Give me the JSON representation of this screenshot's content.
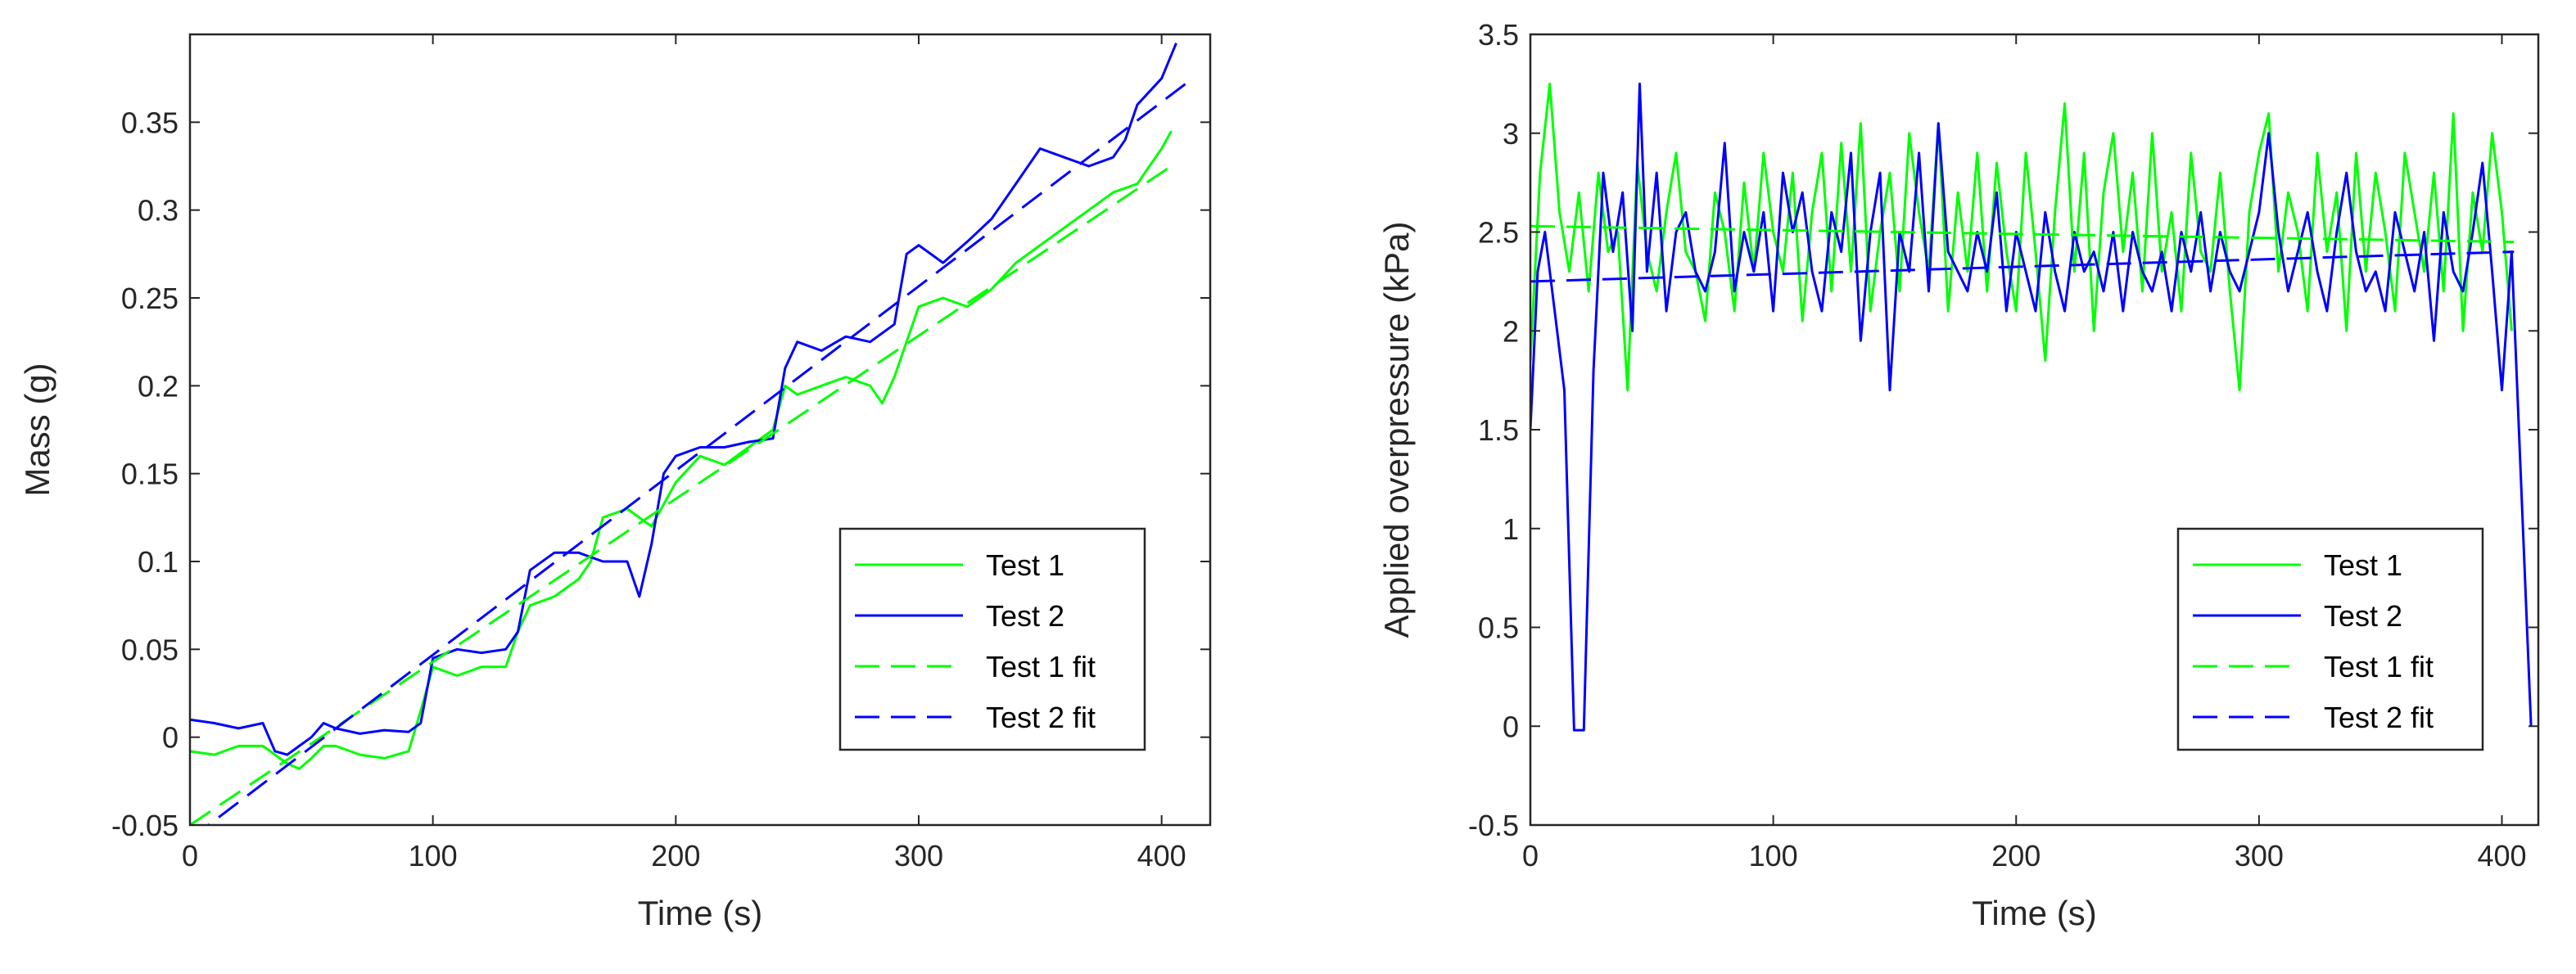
{
  "chart_data": [
    {
      "type": "line",
      "title": "",
      "xlabel": "Time (s)",
      "ylabel": "Mass (g)",
      "xlim": [
        0,
        420
      ],
      "ylim": [
        -0.05,
        0.4
      ],
      "xticks": [
        0,
        100,
        200,
        300,
        400
      ],
      "yticks": [
        -0.05,
        0,
        0.05,
        0.1,
        0.15,
        0.2,
        0.25,
        0.3,
        0.35
      ],
      "ytick_labels": [
        "-0.05",
        "0",
        "0.05",
        "0.1",
        "0.15",
        "0.2",
        "0.25",
        "0.3",
        "0.35"
      ],
      "legend_position": "bottom-right",
      "series": [
        {
          "name": "Test 1",
          "style": "solid",
          "color": "#00ff00",
          "x": [
            0,
            10,
            20,
            30,
            40,
            45,
            50,
            55,
            60,
            70,
            80,
            90,
            95,
            100,
            110,
            120,
            130,
            135,
            140,
            150,
            160,
            165,
            170,
            180,
            190,
            200,
            210,
            220,
            230,
            240,
            245,
            250,
            260,
            270,
            280,
            285,
            290,
            300,
            310,
            320,
            330,
            340,
            350,
            360,
            370,
            380,
            390,
            400,
            404
          ],
          "y": [
            -0.008,
            -0.01,
            -0.005,
            -0.005,
            -0.015,
            -0.018,
            -0.012,
            -0.005,
            -0.005,
            -0.01,
            -0.012,
            -0.008,
            0.015,
            0.04,
            0.035,
            0.04,
            0.04,
            0.06,
            0.075,
            0.08,
            0.09,
            0.1,
            0.125,
            0.13,
            0.12,
            0.145,
            0.16,
            0.155,
            0.165,
            0.175,
            0.2,
            0.195,
            0.2,
            0.205,
            0.2,
            0.19,
            0.205,
            0.245,
            0.25,
            0.245,
            0.255,
            0.27,
            0.28,
            0.29,
            0.3,
            0.31,
            0.315,
            0.335,
            0.345
          ]
        },
        {
          "name": "Test 2",
          "style": "solid",
          "color": "#0000ff",
          "x": [
            0,
            10,
            20,
            30,
            35,
            40,
            45,
            50,
            55,
            60,
            70,
            80,
            90,
            95,
            100,
            110,
            120,
            130,
            135,
            140,
            150,
            160,
            170,
            180,
            185,
            190,
            195,
            200,
            210,
            220,
            230,
            240,
            245,
            250,
            260,
            270,
            280,
            290,
            295,
            300,
            310,
            320,
            330,
            340,
            350,
            360,
            370,
            380,
            385,
            390,
            400,
            406
          ],
          "y": [
            0.01,
            0.008,
            0.005,
            0.008,
            -0.008,
            -0.01,
            -0.005,
            0,
            0.008,
            0.005,
            0.002,
            0.004,
            0.003,
            0.008,
            0.045,
            0.05,
            0.048,
            0.05,
            0.06,
            0.095,
            0.105,
            0.105,
            0.1,
            0.1,
            0.08,
            0.11,
            0.15,
            0.16,
            0.165,
            0.165,
            0.168,
            0.17,
            0.21,
            0.225,
            0.22,
            0.228,
            0.225,
            0.235,
            0.275,
            0.28,
            0.27,
            0.282,
            0.295,
            0.315,
            0.335,
            0.33,
            0.325,
            0.33,
            0.34,
            0.36,
            0.375,
            0.395
          ]
        },
        {
          "name": "Test 1 fit",
          "style": "dashed",
          "color": "#00ff00",
          "x": [
            0,
            405
          ],
          "y": [
            -0.05,
            0.326
          ]
        },
        {
          "name": "Test 2 fit",
          "style": "dashed",
          "color": "#0000ff",
          "x": [
            0,
            410
          ],
          "y": [
            -0.058,
            0.372
          ]
        }
      ]
    },
    {
      "type": "line",
      "title": "",
      "xlabel": "Time (s)",
      "ylabel": "Applied overpressure (kPa)",
      "xlim": [
        0,
        415
      ],
      "ylim": [
        -0.5,
        3.5
      ],
      "xticks": [
        0,
        100,
        200,
        300,
        400
      ],
      "yticks": [
        -0.5,
        0,
        0.5,
        1,
        1.5,
        2,
        2.5,
        3,
        3.5
      ],
      "ytick_labels": [
        "-0.5",
        "0",
        "0.5",
        "1",
        "1.5",
        "2",
        "2.5",
        "3",
        "3.5"
      ],
      "legend_position": "bottom-right",
      "series": [
        {
          "name": "Test 1",
          "style": "solid",
          "color": "#00ff00",
          "x": [
            0,
            4,
            8,
            12,
            16,
            20,
            24,
            28,
            32,
            36,
            40,
            44,
            48,
            52,
            56,
            60,
            64,
            68,
            72,
            76,
            80,
            84,
            88,
            92,
            96,
            100,
            104,
            108,
            112,
            116,
            120,
            124,
            128,
            132,
            136,
            140,
            144,
            148,
            152,
            156,
            160,
            164,
            168,
            172,
            176,
            180,
            184,
            188,
            192,
            196,
            200,
            204,
            208,
            212,
            216,
            220,
            224,
            228,
            232,
            236,
            240,
            244,
            248,
            252,
            256,
            260,
            264,
            268,
            272,
            276,
            280,
            284,
            288,
            292,
            296,
            300,
            304,
            308,
            312,
            316,
            320,
            324,
            328,
            332,
            336,
            340,
            344,
            348,
            352,
            356,
            360,
            364,
            368,
            372,
            376,
            380,
            384,
            388,
            392,
            396,
            400,
            404
          ],
          "y": [
            1.85,
            2.8,
            3.25,
            2.6,
            2.3,
            2.7,
            2.2,
            2.8,
            2.4,
            2.5,
            1.7,
            2.85,
            2.4,
            2.2,
            2.6,
            2.9,
            2.4,
            2.3,
            2.05,
            2.7,
            2.5,
            2.1,
            2.75,
            2.3,
            2.9,
            2.5,
            2.3,
            2.8,
            2.05,
            2.6,
            2.9,
            2.2,
            2.95,
            2.3,
            3.05,
            2.1,
            2.5,
            2.8,
            2.2,
            3.0,
            2.6,
            2.3,
            3.05,
            2.1,
            2.7,
            2.3,
            2.9,
            2.2,
            2.85,
            2.4,
            2.1,
            2.9,
            2.4,
            1.85,
            2.6,
            3.15,
            2.3,
            2.9,
            2.0,
            2.7,
            3.0,
            2.4,
            2.8,
            2.2,
            3.0,
            2.3,
            2.6,
            2.1,
            2.9,
            2.4,
            2.3,
            2.8,
            2.2,
            1.7,
            2.6,
            2.9,
            3.1,
            2.3,
            2.7,
            2.5,
            2.1,
            2.9,
            2.4,
            2.7,
            2.0,
            2.9,
            2.3,
            2.8,
            2.5,
            2.1,
            2.9,
            2.6,
            2.3,
            2.8,
            2.2,
            3.1,
            2.0,
            2.7,
            2.4,
            3.0,
            2.6,
            2.0
          ],
          "fit_x": [
            0,
            405
          ],
          "fit_y": [
            2.53,
            2.45
          ]
        },
        {
          "name": "Test 2",
          "style": "solid",
          "color": "#0000ff",
          "x": [
            0,
            3,
            6,
            10,
            14,
            18,
            22,
            26,
            30,
            34,
            38,
            42,
            45,
            48,
            52,
            56,
            60,
            64,
            68,
            72,
            76,
            80,
            84,
            88,
            92,
            96,
            100,
            104,
            108,
            112,
            116,
            120,
            124,
            128,
            132,
            136,
            140,
            144,
            148,
            152,
            156,
            160,
            164,
            168,
            172,
            176,
            180,
            184,
            188,
            192,
            196,
            200,
            204,
            208,
            212,
            216,
            220,
            224,
            228,
            232,
            236,
            240,
            244,
            248,
            252,
            256,
            260,
            264,
            268,
            272,
            276,
            280,
            284,
            288,
            292,
            296,
            300,
            304,
            308,
            312,
            316,
            320,
            324,
            328,
            332,
            336,
            340,
            344,
            348,
            352,
            356,
            360,
            364,
            368,
            372,
            376,
            380,
            384,
            388,
            392,
            396,
            400,
            404,
            412
          ],
          "y": [
            1.5,
            2.3,
            2.5,
            2.1,
            1.7,
            -0.02,
            -0.02,
            1.8,
            2.8,
            2.4,
            2.7,
            2.0,
            3.25,
            2.3,
            2.8,
            2.1,
            2.5,
            2.6,
            2.3,
            2.2,
            2.4,
            2.95,
            2.2,
            2.5,
            2.3,
            2.6,
            2.1,
            2.8,
            2.5,
            2.7,
            2.3,
            2.1,
            2.6,
            2.4,
            2.9,
            1.95,
            2.5,
            2.8,
            1.7,
            2.5,
            2.3,
            2.9,
            2.2,
            3.05,
            2.4,
            2.3,
            2.2,
            2.5,
            2.3,
            2.7,
            2.1,
            2.5,
            2.3,
            2.1,
            2.6,
            2.3,
            2.1,
            2.5,
            2.3,
            2.4,
            2.2,
            2.5,
            2.1,
            2.5,
            2.3,
            2.2,
            2.4,
            2.1,
            2.5,
            2.3,
            2.6,
            2.2,
            2.5,
            2.3,
            2.2,
            2.4,
            2.6,
            3.0,
            2.5,
            2.2,
            2.4,
            2.6,
            2.3,
            2.1,
            2.5,
            2.8,
            2.4,
            2.2,
            2.3,
            2.1,
            2.6,
            2.4,
            2.2,
            2.5,
            1.95,
            2.6,
            2.3,
            2.2,
            2.5,
            2.85,
            2.3,
            1.7,
            2.4,
            0.0
          ],
          "fit_x": [
            0,
            405
          ],
          "fit_y": [
            2.25,
            2.4
          ]
        },
        {
          "name": "Test 1 fit",
          "style": "dashed",
          "color": "#00ff00",
          "x": [
            0,
            405
          ],
          "y": [
            2.53,
            2.45
          ]
        },
        {
          "name": "Test 2 fit",
          "style": "dashed",
          "color": "#0000ff",
          "x": [
            0,
            405
          ],
          "y": [
            2.25,
            2.4
          ]
        }
      ]
    }
  ]
}
